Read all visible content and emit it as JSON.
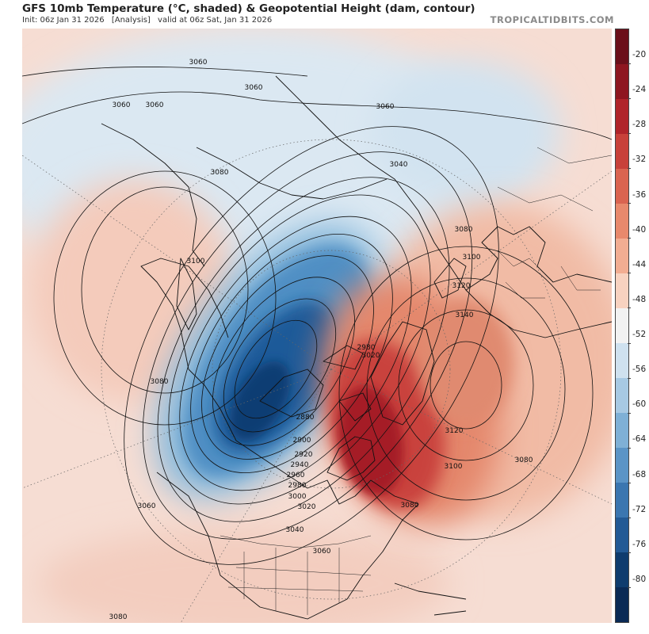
{
  "header": {
    "title": "GFS 10mb Temperature (°C, shaded) & Geopotential Height (dam, contour)",
    "init": "Init: 06z Jan 31 2026",
    "analysis": "[Analysis]",
    "valid": "valid at 06z Sat, Jan 31 2026",
    "brand": "TROPICALTIDBITS.COM"
  },
  "colorbar": {
    "labels": [
      "-20",
      "-24",
      "-28",
      "-32",
      "-36",
      "-40",
      "-44",
      "-48",
      "-52",
      "-56",
      "-60",
      "-64",
      "-68",
      "-72",
      "-76",
      "-80"
    ],
    "colors": [
      "#6b0f1a",
      "#8e1620",
      "#b0242a",
      "#c8413a",
      "#da6450",
      "#e8896c",
      "#f2ad92",
      "#f8d2c0",
      "#f2f2f2",
      "#cfe1ef",
      "#a7c9e3",
      "#7fb0d6",
      "#5b94c6",
      "#3b76b0",
      "#235a95",
      "#0f3c6e",
      "#0a2a55"
    ]
  },
  "map": {
    "contours": [
      {
        "text": "3060",
        "colorless": true
      },
      {
        "text": "3060"
      },
      {
        "text": "3060"
      },
      {
        "text": "3060"
      },
      {
        "text": "3060"
      },
      {
        "text": "3080"
      },
      {
        "text": "3040"
      },
      {
        "text": "3080"
      },
      {
        "text": "3100"
      },
      {
        "text": "3120"
      },
      {
        "text": "3140"
      },
      {
        "text": "3100"
      },
      {
        "text": "3080"
      },
      {
        "text": "2980"
      },
      {
        "text": "3020"
      },
      {
        "text": "2880"
      },
      {
        "text": "2900"
      },
      {
        "text": "2920"
      },
      {
        "text": "2940"
      },
      {
        "text": "2960"
      },
      {
        "text": "2980"
      },
      {
        "text": "3000"
      },
      {
        "text": "3020"
      },
      {
        "text": "3040"
      },
      {
        "text": "3060"
      },
      {
        "text": "3060"
      },
      {
        "text": "3080"
      },
      {
        "text": "3120"
      },
      {
        "text": "3100"
      },
      {
        "text": "3080"
      },
      {
        "text": "3080"
      },
      {
        "text": "3080"
      }
    ]
  }
}
